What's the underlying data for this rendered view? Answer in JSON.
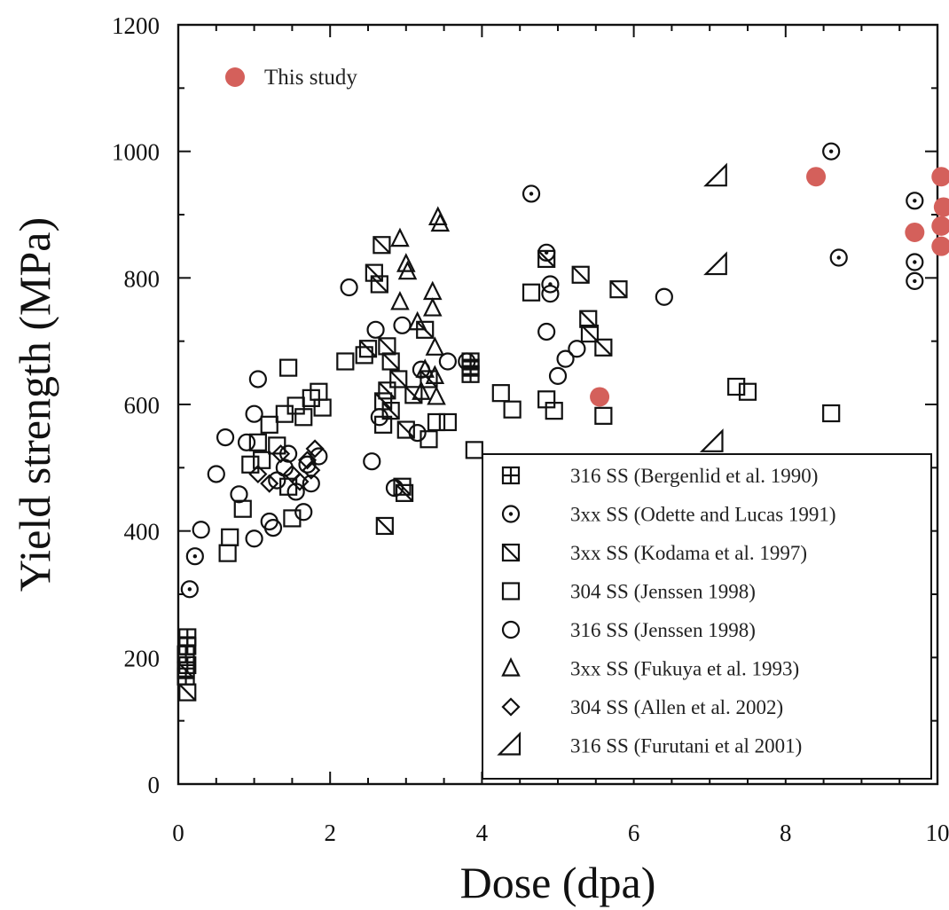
{
  "chart_data": {
    "type": "scatter",
    "title": "",
    "xlabel": "Dose (dpa)",
    "ylabel": "Yield strength (MPa)",
    "xlim": [
      0,
      10
    ],
    "ylim": [
      0,
      1200
    ],
    "x_ticks": [
      "0",
      "2",
      "4",
      "6",
      "8",
      "10"
    ],
    "y_ticks": [
      "0",
      "200",
      "400",
      "600",
      "800",
      "1000",
      "1200"
    ],
    "grid": false,
    "legend_placement": "bottom-right",
    "series": [
      {
        "name": "This study",
        "marker": "filled-circle",
        "color": "#d4605b",
        "points": [
          [
            5.55,
            612
          ],
          [
            8.4,
            960
          ],
          [
            9.7,
            872
          ],
          [
            10.05,
            960
          ],
          [
            10.08,
            912
          ],
          [
            10.05,
            882
          ],
          [
            10.05,
            850
          ]
        ]
      },
      {
        "name": "316 SS (Bergenlid et al. 1990)",
        "marker": "square-plus",
        "points": [
          [
            0.12,
            232
          ],
          [
            0.12,
            218
          ],
          [
            0.1,
            205
          ],
          [
            0.12,
            188
          ],
          [
            0.1,
            170
          ],
          [
            3.85,
            668
          ],
          [
            3.85,
            658
          ],
          [
            3.85,
            648
          ]
        ]
      },
      {
        "name": "3xx SS (Odette and Lucas 1991)",
        "marker": "circle-dot",
        "points": [
          [
            0.15,
            308
          ],
          [
            0.22,
            360
          ],
          [
            4.65,
            933
          ],
          [
            4.85,
            840
          ],
          [
            4.9,
            790
          ],
          [
            8.6,
            1000
          ],
          [
            8.7,
            832
          ],
          [
            9.7,
            922
          ],
          [
            9.7,
            825
          ],
          [
            9.7,
            795
          ]
        ]
      },
      {
        "name": "3xx SS (Kodama et al. 1997)",
        "marker": "square-slash",
        "points": [
          [
            0.1,
            180
          ],
          [
            0.12,
            145
          ],
          [
            2.68,
            852
          ],
          [
            2.58,
            808
          ],
          [
            2.65,
            790
          ],
          [
            2.5,
            688
          ],
          [
            2.75,
            692
          ],
          [
            2.8,
            668
          ],
          [
            2.9,
            640
          ],
          [
            2.75,
            622
          ],
          [
            2.7,
            605
          ],
          [
            2.8,
            590
          ],
          [
            3.0,
            560
          ],
          [
            3.1,
            615
          ],
          [
            3.3,
            640
          ],
          [
            2.95,
            470
          ],
          [
            2.98,
            460
          ],
          [
            2.72,
            408
          ],
          [
            3.25,
            718
          ],
          [
            4.85,
            830
          ],
          [
            5.3,
            805
          ],
          [
            5.4,
            735
          ],
          [
            5.42,
            712
          ],
          [
            5.6,
            690
          ],
          [
            5.8,
            782
          ]
        ]
      },
      {
        "name": "304 SS (Jenssen 1998)",
        "marker": "square",
        "points": [
          [
            0.65,
            365
          ],
          [
            0.68,
            390
          ],
          [
            0.85,
            435
          ],
          [
            0.95,
            505
          ],
          [
            1.05,
            540
          ],
          [
            1.1,
            512
          ],
          [
            1.2,
            568
          ],
          [
            1.3,
            535
          ],
          [
            1.4,
            585
          ],
          [
            1.45,
            470
          ],
          [
            1.5,
            420
          ],
          [
            1.45,
            658
          ],
          [
            1.55,
            598
          ],
          [
            1.65,
            580
          ],
          [
            1.75,
            610
          ],
          [
            1.85,
            620
          ],
          [
            1.9,
            595
          ],
          [
            2.2,
            668
          ],
          [
            2.45,
            678
          ],
          [
            2.7,
            568
          ],
          [
            3.3,
            545
          ],
          [
            3.4,
            572
          ],
          [
            3.55,
            572
          ],
          [
            3.9,
            528
          ],
          [
            4.25,
            618
          ],
          [
            4.4,
            592
          ],
          [
            4.65,
            777
          ],
          [
            4.85,
            608
          ],
          [
            4.95,
            590
          ],
          [
            5.6,
            582
          ],
          [
            7.35,
            628
          ],
          [
            7.5,
            620
          ],
          [
            8.6,
            586
          ]
        ]
      },
      {
        "name": "316 SS (Jenssen 1998)",
        "marker": "circle",
        "points": [
          [
            0.3,
            402
          ],
          [
            0.5,
            490
          ],
          [
            0.62,
            548
          ],
          [
            0.8,
            458
          ],
          [
            0.9,
            540
          ],
          [
            1.0,
            585
          ],
          [
            1.05,
            640
          ],
          [
            1.0,
            388
          ],
          [
            1.2,
            415
          ],
          [
            1.25,
            405
          ],
          [
            1.3,
            480
          ],
          [
            1.4,
            500
          ],
          [
            1.45,
            522
          ],
          [
            1.55,
            462
          ],
          [
            1.65,
            430
          ],
          [
            1.7,
            505
          ],
          [
            1.75,
            475
          ],
          [
            1.85,
            518
          ],
          [
            2.25,
            785
          ],
          [
            2.6,
            718
          ],
          [
            2.55,
            510
          ],
          [
            2.65,
            580
          ],
          [
            2.85,
            468
          ],
          [
            2.95,
            725
          ],
          [
            3.15,
            555
          ],
          [
            3.2,
            655
          ],
          [
            3.55,
            668
          ],
          [
            3.8,
            668
          ],
          [
            4.85,
            715
          ],
          [
            4.9,
            775
          ],
          [
            5.0,
            645
          ],
          [
            5.1,
            672
          ],
          [
            5.25,
            688
          ],
          [
            6.4,
            770
          ]
        ]
      },
      {
        "name": "3xx SS (Fukuya et al. 1993)",
        "marker": "triangle",
        "points": [
          [
            2.92,
            862
          ],
          [
            3.0,
            822
          ],
          [
            3.02,
            810
          ],
          [
            2.92,
            762
          ],
          [
            3.15,
            730
          ],
          [
            3.35,
            778
          ],
          [
            3.35,
            752
          ],
          [
            3.38,
            690
          ],
          [
            3.4,
            612
          ],
          [
            3.38,
            645
          ],
          [
            3.42,
            896
          ],
          [
            3.45,
            886
          ],
          [
            3.25,
            655
          ],
          [
            3.2,
            620
          ]
        ]
      },
      {
        "name": "304 SS (Allen et al. 2002)",
        "marker": "diamond",
        "points": [
          [
            1.05,
            490
          ],
          [
            1.2,
            475
          ],
          [
            1.35,
            522
          ],
          [
            1.5,
            490
          ],
          [
            1.6,
            478
          ],
          [
            1.7,
            512
          ],
          [
            1.75,
            496
          ],
          [
            1.8,
            530
          ]
        ]
      },
      {
        "name": "316 SS (Furutani et al 2001)",
        "marker": "right-triangle",
        "points": [
          [
            7.1,
            960
          ],
          [
            7.1,
            820
          ],
          [
            7.05,
            540
          ]
        ]
      }
    ]
  },
  "colors": {
    "this_study": "#d4605b",
    "marker_stroke": "#111111",
    "axis": "#111111"
  }
}
